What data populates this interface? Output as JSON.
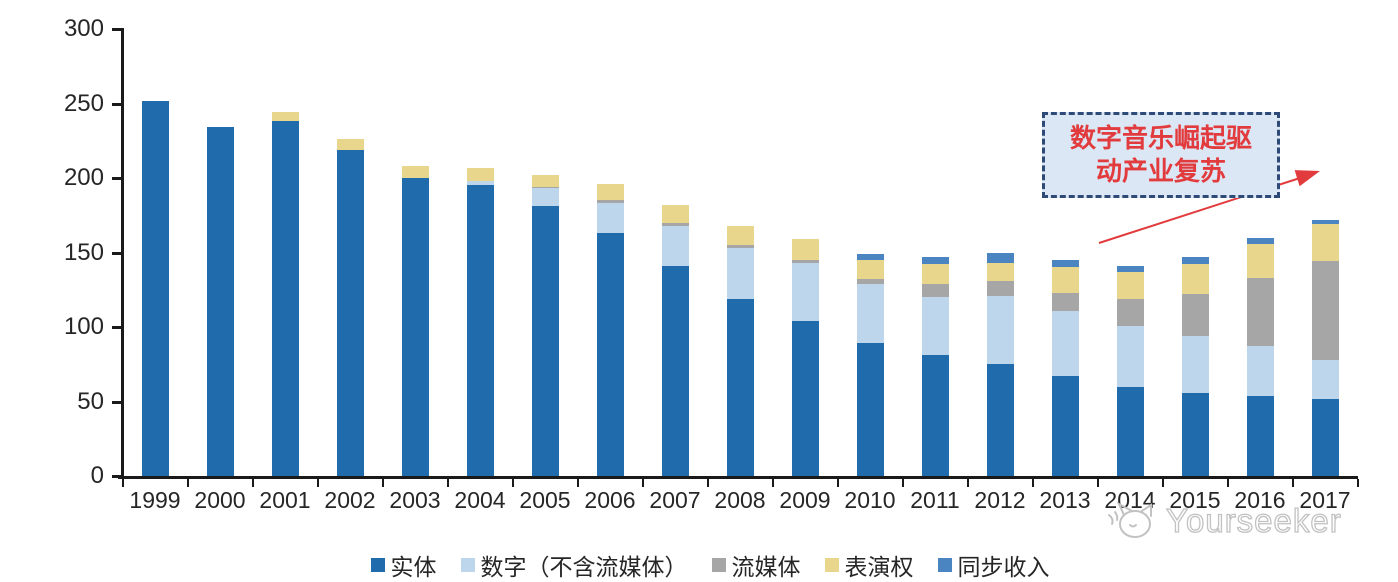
{
  "chart_data": {
    "type": "bar",
    "stacked": true,
    "title": "",
    "categories": [
      "1999",
      "2000",
      "2001",
      "2002",
      "2003",
      "2004",
      "2005",
      "2006",
      "2007",
      "2008",
      "2009",
      "2010",
      "2011",
      "2012",
      "2013",
      "2014",
      "2015",
      "2016",
      "2017"
    ],
    "series": [
      {
        "name": "实体",
        "color": "#1f6bac",
        "values": [
          252,
          234,
          238,
          219,
          200,
          195,
          181,
          163,
          141,
          119,
          104,
          89,
          81,
          75,
          67,
          60,
          56,
          54,
          52
        ]
      },
      {
        "name": "数字（不含流媒体）",
        "color": "#bdd6ec",
        "values": [
          0,
          0,
          0,
          0,
          0,
          3,
          12,
          20,
          27,
          34,
          39,
          40,
          39,
          46,
          44,
          41,
          38,
          33,
          26
        ]
      },
      {
        "name": "流媒体",
        "color": "#a6a6a6",
        "values": [
          0,
          0,
          0,
          0,
          0,
          0,
          1,
          2,
          2,
          2,
          2,
          3,
          9,
          10,
          12,
          18,
          28,
          46,
          66
        ]
      },
      {
        "name": "表演权",
        "color": "#e9d68d",
        "values": [
          0,
          0,
          6,
          7,
          8,
          9,
          8,
          11,
          12,
          13,
          14,
          13,
          13,
          12,
          17,
          18,
          20,
          23,
          25
        ]
      },
      {
        "name": "同步收入",
        "color": "#4a85c2",
        "values": [
          0,
          0,
          0,
          0,
          0,
          0,
          0,
          0,
          0,
          0,
          0,
          4,
          5,
          7,
          5,
          4,
          5,
          4,
          3
        ]
      }
    ],
    "ylim": [
      0,
      300
    ],
    "yticks": [
      0,
      50,
      100,
      150,
      200,
      250,
      300
    ],
    "xlabel": "",
    "ylabel": "",
    "grid": false,
    "legend_position": "bottom",
    "axis_color": "#1a1a1a",
    "label_color": "#262626"
  },
  "annotation": {
    "line1": "数字音乐崛起驱",
    "line2": "动产业复苏",
    "fill_color": "#dce7f5",
    "border_color": "#2e4a76",
    "text_color": "#e23b3d",
    "arrow_color": "#e23b3d"
  },
  "watermark": {
    "text": "Yourseeker",
    "color": "#c2c2c2",
    "logo": "yourseeker-cat-logo"
  }
}
